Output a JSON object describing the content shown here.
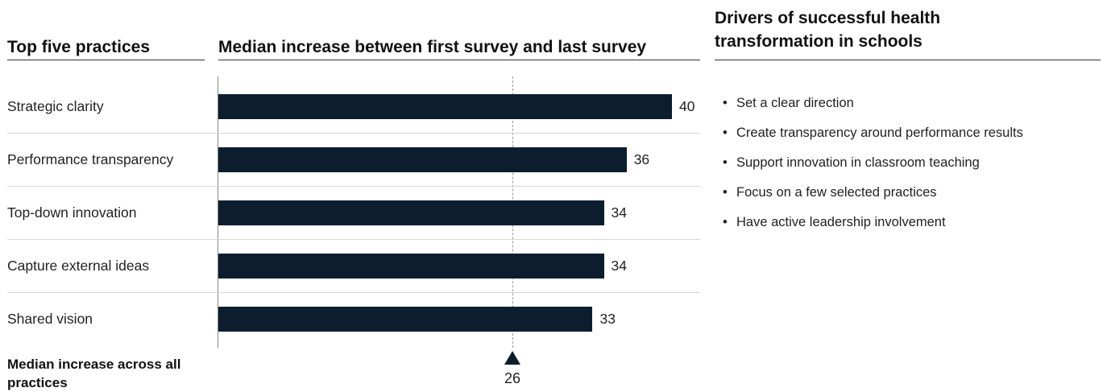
{
  "headers": {
    "left": "Top five practices",
    "middle": "Median increase between first survey and last survey",
    "right": "Drivers of successful health transformation in schools"
  },
  "chart_data": {
    "type": "bar",
    "orientation": "horizontal",
    "categories": [
      "Strategic clarity",
      "Performance transparency",
      "Top-down innovation",
      "Capture external ideas",
      "Shared vision"
    ],
    "values": [
      40,
      36,
      34,
      34,
      33
    ],
    "reference_line": {
      "label": "Median increase across all practices",
      "value": 26
    },
    "xlim": [
      0,
      40
    ],
    "grid": false,
    "colors": {
      "bar": "#0c1e2e",
      "reference": "#9a9a9a"
    }
  },
  "footer": {
    "median_label": "Median increase across all practices",
    "median_value": "26"
  },
  "drivers": [
    "Set a clear direction",
    "Create transparency around performance results",
    "Support innovation in classroom teaching",
    "Focus on a few selected practices",
    "Have active leadership involvement"
  ],
  "bullet_glyph": "•"
}
